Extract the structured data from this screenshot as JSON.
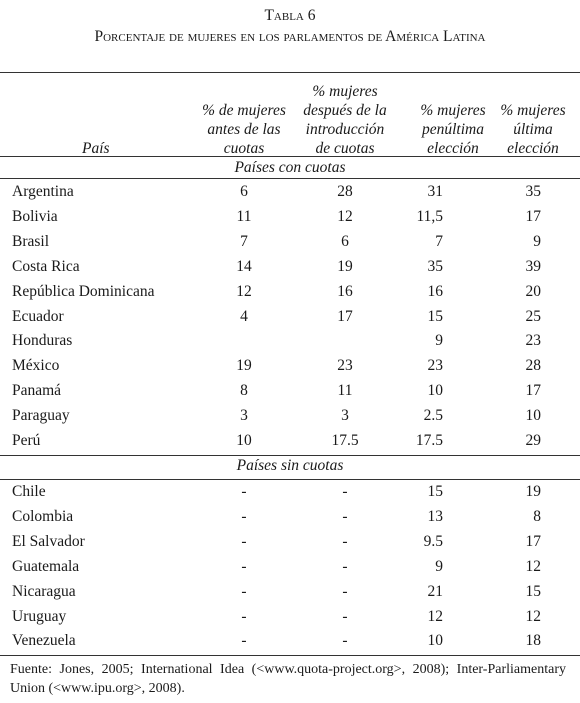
{
  "header": {
    "label": "Tabla 6",
    "title": "Porcentaje de mujeres en los parlamentos de América Latina"
  },
  "columns": [
    [
      "País"
    ],
    [
      "% de mujeres",
      "antes de las",
      "cuotas"
    ],
    [
      "% mujeres",
      "después de la",
      "introducción",
      "de cuotas"
    ],
    [
      "% mujeres",
      "penúltima",
      "elección"
    ],
    [
      "% mujeres",
      "última",
      "elección"
    ]
  ],
  "sections": [
    {
      "title": "Países con cuotas",
      "rows": [
        [
          "Argentina",
          "6",
          "28",
          "31",
          "35"
        ],
        [
          "Bolivia",
          "11",
          "12",
          "11,5",
          "17"
        ],
        [
          "Brasil",
          "7",
          "6",
          "7",
          "9"
        ],
        [
          "Costa Rica",
          "14",
          "19",
          "35",
          "39"
        ],
        [
          "República Dominicana",
          "12",
          "16",
          "16",
          "20"
        ],
        [
          "Ecuador",
          "4",
          "17",
          "15",
          "25"
        ],
        [
          "Honduras",
          null,
          null,
          "9",
          "23"
        ],
        [
          "México",
          "19",
          "23",
          "23",
          "28"
        ],
        [
          "Panamá",
          "8",
          "11",
          "10",
          "17"
        ],
        [
          "Paraguay",
          "3",
          "3",
          "2.5",
          "10"
        ],
        [
          "Perú",
          "10",
          "17.5",
          "17.5",
          "29"
        ]
      ]
    },
    {
      "title": "Países sin cuotas",
      "rows": [
        [
          "Chile",
          "-",
          "-",
          "15",
          "19"
        ],
        [
          "Colombia",
          "-",
          "-",
          "13",
          "8"
        ],
        [
          "El Salvador",
          "-",
          "-",
          "9.5",
          "17"
        ],
        [
          "Guatemala",
          "-",
          "-",
          "9",
          "12"
        ],
        [
          "Nicaragua",
          "-",
          "-",
          "21",
          "15"
        ],
        [
          "Uruguay",
          "-",
          "-",
          "12",
          "12"
        ],
        [
          "Venezuela",
          "-",
          "-",
          "10",
          "18"
        ]
      ]
    }
  ],
  "footnote": "Fuente: Jones, 2005; International Idea (<www.quota-project.org>, 2008); Inter-Parliamentary Union (<www.ipu.org>, 2008)."
}
